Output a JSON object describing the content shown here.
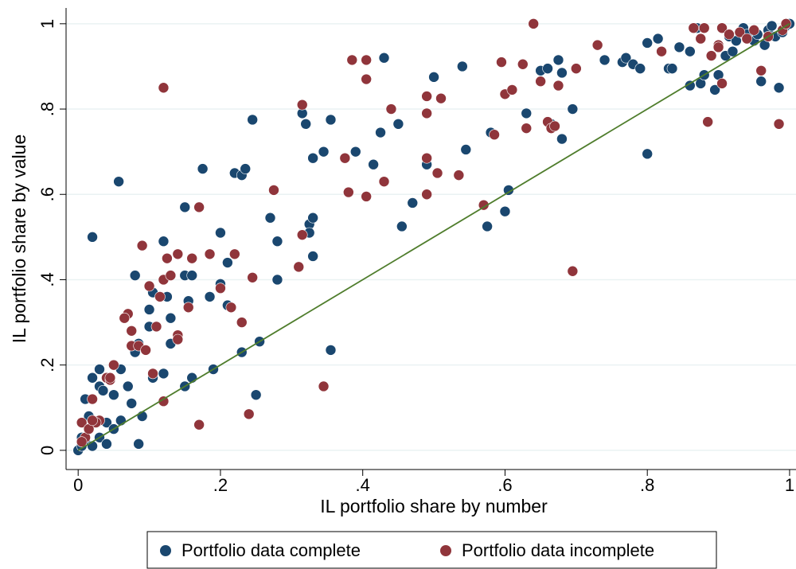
{
  "chart_data": {
    "type": "scatter",
    "x_label": "IL portfolio share by number",
    "y_label": "IL portfolio share by value",
    "xlim": [
      -0.017,
      1.009
    ],
    "ylim": [
      -0.045,
      1.037
    ],
    "xticks": [
      0,
      {
        "value": 0.2,
        "label": ".2"
      },
      {
        "value": 0.4,
        "label": ".4"
      },
      {
        "value": 0.6,
        "label": ".6"
      },
      {
        "value": 0.8,
        "label": ".8"
      },
      1
    ],
    "yticks": [
      0,
      {
        "value": 0.2,
        "label": ".2"
      },
      {
        "value": 0.4,
        "label": ".4"
      },
      {
        "value": 0.6,
        "label": ".6"
      },
      {
        "value": 0.8,
        "label": ".8"
      },
      1
    ],
    "grid": true,
    "legend": "bottom",
    "reference_line": {
      "x": [
        0,
        1
      ],
      "y": [
        0,
        1
      ],
      "color": "#4f7d2c"
    },
    "series": [
      {
        "name": "Portfolio data complete",
        "color": "#1a476f",
        "x": [
          0.02,
          0.057,
          0.01,
          0.02,
          0.03,
          0.03,
          0.035,
          0.06,
          0.05,
          0.07,
          0.075,
          0.06,
          0.04,
          0.015,
          0.01,
          0.02,
          0.03,
          0.04,
          0.05,
          0.085,
          0.09,
          0.08,
          0.085,
          0.075,
          0.08,
          0.1,
          0.105,
          0.1,
          0.105,
          0.12,
          0.12,
          0.125,
          0.13,
          0.13,
          0.15,
          0.15,
          0.16,
          0.155,
          0.15,
          0.16,
          0.175,
          0.185,
          0.19,
          0.2,
          0.2,
          0.21,
          0.21,
          0.22,
          0.23,
          0.235,
          0.23,
          0.245,
          0.25,
          0.255,
          0.27,
          0.28,
          0.28,
          0.315,
          0.32,
          0.325,
          0.325,
          0.33,
          0.33,
          0.33,
          0.345,
          0.355,
          0.355,
          0.39,
          0.415,
          0.425,
          0.43,
          0.45,
          0.455,
          0.47,
          0.49,
          0.5,
          0.54,
          0.545,
          0.575,
          0.58,
          0.6,
          0.605,
          0.63,
          0.65,
          0.66,
          0.665,
          0.675,
          0.68,
          0.68,
          0.695,
          0.74,
          0.765,
          0.77,
          0.78,
          0.79,
          0.8,
          0.8,
          0.815,
          0.83,
          0.835,
          0.845,
          0.86,
          0.86,
          0.87,
          0.875,
          0.88,
          0.895,
          0.9,
          0.91,
          0.915,
          0.92,
          0.925,
          0.935,
          0.94,
          0.95,
          0.955,
          0.96,
          0.965,
          0.97,
          0.975,
          0.98,
          0.985,
          0.99,
          0.995,
          1.0,
          0.0,
          0.005,
          0.005
        ],
        "values": [
          0.5,
          0.63,
          0.12,
          0.17,
          0.19,
          0.15,
          0.14,
          0.19,
          0.13,
          0.15,
          0.11,
          0.07,
          0.065,
          0.08,
          0.02,
          0.01,
          0.03,
          0.015,
          0.05,
          0.015,
          0.08,
          0.23,
          0.25,
          0.28,
          0.41,
          0.33,
          0.37,
          0.29,
          0.17,
          0.18,
          0.49,
          0.36,
          0.31,
          0.25,
          0.57,
          0.41,
          0.41,
          0.35,
          0.15,
          0.17,
          0.66,
          0.36,
          0.19,
          0.51,
          0.39,
          0.44,
          0.34,
          0.65,
          0.645,
          0.66,
          0.23,
          0.775,
          0.13,
          0.255,
          0.545,
          0.4,
          0.49,
          0.79,
          0.765,
          0.53,
          0.51,
          0.545,
          0.455,
          0.685,
          0.7,
          0.775,
          0.235,
          0.7,
          0.67,
          0.745,
          0.92,
          0.765,
          0.525,
          0.58,
          0.67,
          0.875,
          0.9,
          0.705,
          0.525,
          0.745,
          0.56,
          0.61,
          0.79,
          0.89,
          0.895,
          0.765,
          0.915,
          0.885,
          0.73,
          0.8,
          0.915,
          0.91,
          0.92,
          0.905,
          0.895,
          0.955,
          0.695,
          0.965,
          0.895,
          0.895,
          0.945,
          0.935,
          0.855,
          0.99,
          0.86,
          0.88,
          0.845,
          0.88,
          0.925,
          0.97,
          0.935,
          0.96,
          0.99,
          0.975,
          0.96,
          0.975,
          0.865,
          0.95,
          0.985,
          0.995,
          0.97,
          0.85,
          0.98,
          0.995,
          1.0,
          0.0,
          0.01,
          0.03
        ]
      },
      {
        "name": "Portfolio data incomplete",
        "color": "#90353b",
        "x": [
          0.12,
          0.07,
          0.065,
          0.09,
          0.075,
          0.075,
          0.085,
          0.095,
          0.1,
          0.11,
          0.105,
          0.115,
          0.12,
          0.12,
          0.125,
          0.13,
          0.14,
          0.14,
          0.14,
          0.155,
          0.16,
          0.17,
          0.17,
          0.185,
          0.2,
          0.215,
          0.22,
          0.23,
          0.24,
          0.245,
          0.275,
          0.31,
          0.315,
          0.315,
          0.345,
          0.375,
          0.38,
          0.385,
          0.405,
          0.405,
          0.405,
          0.43,
          0.44,
          0.49,
          0.49,
          0.49,
          0.49,
          0.505,
          0.51,
          0.535,
          0.585,
          0.57,
          0.595,
          0.6,
          0.61,
          0.625,
          0.63,
          0.64,
          0.65,
          0.66,
          0.665,
          0.67,
          0.675,
          0.695,
          0.7,
          0.73,
          0.82,
          0.865,
          0.875,
          0.88,
          0.885,
          0.89,
          0.9,
          0.9,
          0.905,
          0.905,
          0.915,
          0.93,
          0.94,
          0.95,
          0.96,
          0.97,
          0.985,
          0.99,
          0.995,
          0.02,
          0.03,
          0.025,
          0.04,
          0.045,
          0.05,
          0.005,
          0.01,
          0.015,
          0.02,
          0.005,
          0.045
        ],
        "values": [
          0.85,
          0.32,
          0.31,
          0.48,
          0.245,
          0.28,
          0.245,
          0.235,
          0.385,
          0.29,
          0.18,
          0.36,
          0.115,
          0.4,
          0.45,
          0.41,
          0.27,
          0.26,
          0.46,
          0.335,
          0.45,
          0.57,
          0.06,
          0.46,
          0.38,
          0.335,
          0.46,
          0.3,
          0.085,
          0.405,
          0.61,
          0.43,
          0.81,
          0.505,
          0.15,
          0.685,
          0.605,
          0.915,
          0.915,
          0.595,
          0.87,
          0.63,
          0.8,
          0.79,
          0.685,
          0.6,
          0.83,
          0.65,
          0.825,
          0.645,
          0.74,
          0.575,
          0.91,
          0.835,
          0.845,
          0.905,
          0.755,
          1.0,
          0.865,
          0.77,
          0.755,
          0.76,
          0.855,
          0.42,
          0.895,
          0.95,
          0.935,
          0.99,
          0.965,
          0.99,
          0.77,
          0.925,
          0.95,
          0.945,
          0.86,
          0.99,
          0.975,
          0.98,
          0.965,
          0.985,
          0.89,
          0.97,
          0.765,
          0.985,
          1.0,
          0.12,
          0.07,
          0.065,
          0.17,
          0.165,
          0.2,
          0.065,
          0.03,
          0.05,
          0.07,
          0.02,
          0.17
        ]
      }
    ]
  }
}
